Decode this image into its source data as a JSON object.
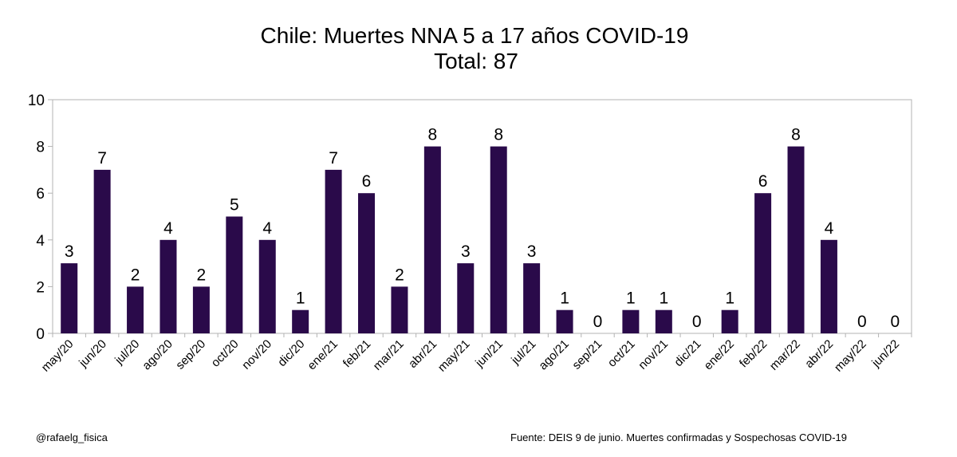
{
  "chart_data": {
    "type": "bar",
    "title": "Chile: Muertes NNA 5 a 17 años COVID-19",
    "subtitle": "Total: 87",
    "xlabel": "",
    "ylabel": "",
    "categories": [
      "may/20",
      "jun/20",
      "jul/20",
      "ago/20",
      "sep/20",
      "oct/20",
      "nov/20",
      "dic/20",
      "ene/21",
      "feb/21",
      "mar/21",
      "abr/21",
      "may/21",
      "jun/21",
      "jul/21",
      "ago/21",
      "sep/21",
      "oct/21",
      "nov/21",
      "dic/21",
      "ene/22",
      "feb/22",
      "mar/22",
      "abr/22",
      "may/22",
      "jun/22"
    ],
    "values": [
      3,
      7,
      2,
      4,
      2,
      5,
      4,
      1,
      7,
      6,
      2,
      8,
      3,
      8,
      3,
      1,
      0,
      1,
      1,
      0,
      1,
      6,
      8,
      4,
      0,
      0
    ],
    "ylim": [
      0,
      10
    ],
    "yticks": [
      0,
      2,
      4,
      6,
      8,
      10
    ],
    "bar_color": "#2a0a4a",
    "grid": false,
    "legend": "none",
    "data_labels": true
  },
  "footer": {
    "credit": "@rafaelg_fisica",
    "source": "Fuente: DEIS 9 de junio. Muertes confirmadas y Sospechosas COVID-19"
  }
}
